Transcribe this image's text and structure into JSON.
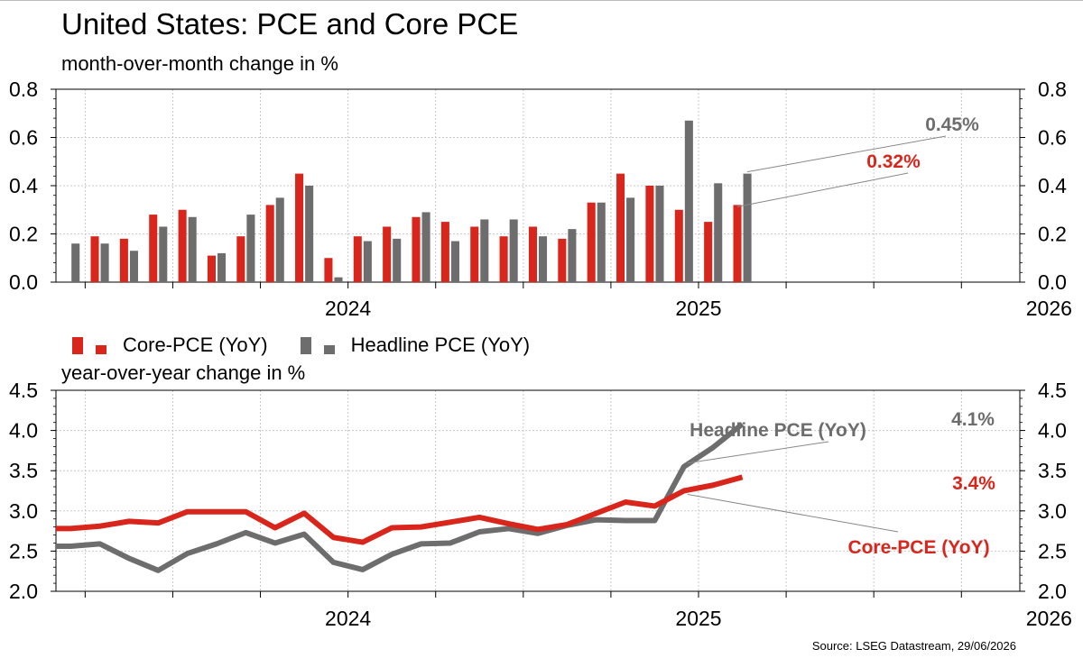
{
  "header": {
    "title": "United States: PCE and Core PCE",
    "subtitle_top": "month-over-month change in %",
    "subtitle_bottom": "year-over-year change in %"
  },
  "legend": {
    "core": "Core-PCE (YoY)",
    "headline": "Headline PCE (YoY)"
  },
  "source": "Source: LSEG Datastream, 29/06/2026",
  "colors": {
    "core": "#d9261c",
    "headline": "#6d6d6d",
    "grid": "#c8c8c8"
  },
  "chart_data": [
    {
      "type": "bar",
      "subtitle": "month-over-month change in %",
      "x": [
        "2023-09",
        "2023-10",
        "2023-11",
        "2023-12",
        "2024-01",
        "2024-02",
        "2024-03",
        "2024-04",
        "2024-05",
        "2024-06",
        "2024-07",
        "2024-08",
        "2024-09",
        "2024-10",
        "2024-11",
        "2024-12",
        "2025-01",
        "2025-02",
        "2025-03",
        "2025-04",
        "2025-05",
        "2025-06",
        "2025-07",
        "2025-08",
        "2025-09",
        "2025-10",
        "2025-11",
        "2025-12",
        "2026-01",
        "2026-02",
        "2026-03",
        "2026-04",
        "2026-05"
      ],
      "series": [
        {
          "name": "Core-PCE (YoY)",
          "values": [
            null,
            0.19,
            0.18,
            0.28,
            0.3,
            0.11,
            0.19,
            0.32,
            0.45,
            0.1,
            0.19,
            0.23,
            0.27,
            0.25,
            0.23,
            0.19,
            0.23,
            0.18,
            0.33,
            0.45,
            0.4,
            0.3,
            0.25,
            0.32,
            null,
            null,
            null,
            null,
            null,
            null,
            null,
            null,
            null
          ]
        },
        {
          "name": "Headline PCE (YoY)",
          "values": [
            0.16,
            0.16,
            0.13,
            0.23,
            0.27,
            0.12,
            0.28,
            0.35,
            0.4,
            0.02,
            0.17,
            0.18,
            0.29,
            0.17,
            0.26,
            0.26,
            0.19,
            0.22,
            0.33,
            0.35,
            0.4,
            0.67,
            0.41,
            0.45,
            null,
            null,
            null,
            null,
            null,
            null,
            null,
            null,
            null
          ]
        }
      ],
      "x_tick_labels": [
        "2024",
        "2025",
        "2026"
      ],
      "ylim": [
        0,
        0.8
      ],
      "yticks": [
        "0.0",
        "0.2",
        "0.4",
        "0.6",
        "0.8"
      ],
      "annotations": [
        {
          "text": "0.32%",
          "series": "Core-PCE (YoY)",
          "x": "2025-04"
        },
        {
          "text": "0.45%",
          "series": "Headline PCE (YoY)",
          "x": "2025-04"
        }
      ],
      "grid": true,
      "axes": "left and right"
    },
    {
      "type": "line",
      "subtitle": "year-over-year change in %",
      "x": [
        "2023-09",
        "2023-10",
        "2023-11",
        "2023-12",
        "2024-01",
        "2024-02",
        "2024-03",
        "2024-04",
        "2024-05",
        "2024-06",
        "2024-07",
        "2024-08",
        "2024-09",
        "2024-10",
        "2024-11",
        "2024-12",
        "2025-01",
        "2025-02",
        "2025-03",
        "2025-04",
        "2025-05",
        "2025-06",
        "2025-07",
        "2025-08",
        "2025-09",
        "2025-10",
        "2025-11",
        "2025-12",
        "2026-01",
        "2026-02",
        "2026-03",
        "2026-04",
        "2026-05"
      ],
      "series": [
        {
          "name": "Core-PCE (YoY)",
          "values": [
            2.78,
            2.81,
            2.87,
            2.85,
            2.99,
            2.99,
            2.99,
            2.79,
            2.97,
            2.67,
            2.61,
            2.79,
            2.8,
            2.86,
            2.92,
            2.84,
            2.77,
            2.83,
            2.97,
            3.11,
            3.06,
            3.25,
            3.32,
            3.42,
            null,
            null,
            null,
            null,
            null,
            null,
            null,
            null,
            null
          ]
        },
        {
          "name": "Headline PCE (YoY)",
          "values": [
            2.56,
            2.59,
            2.41,
            2.26,
            2.47,
            2.59,
            2.73,
            2.6,
            2.71,
            2.36,
            2.27,
            2.46,
            2.59,
            2.6,
            2.74,
            2.78,
            2.72,
            2.82,
            2.89,
            2.88,
            2.88,
            3.55,
            3.79,
            4.08,
            null,
            null,
            null,
            null,
            null,
            null,
            null,
            null,
            null
          ]
        }
      ],
      "x_tick_labels": [
        "2024",
        "2025",
        "2026"
      ],
      "ylim": [
        2.0,
        4.5
      ],
      "yticks": [
        "2.0",
        "2.5",
        "3.0",
        "3.5",
        "4.0",
        "4.5"
      ],
      "annotations": [
        {
          "text": "4.1%",
          "series": "Headline PCE (YoY)"
        },
        {
          "text": "3.4%",
          "series": "Core-PCE (YoY)"
        },
        {
          "text": "Headline PCE (YoY)",
          "series": "Headline PCE (YoY)"
        },
        {
          "text": "Core-PCE (YoY)",
          "series": "Core-PCE (YoY)"
        }
      ],
      "grid": true,
      "axes": "left and right"
    }
  ]
}
